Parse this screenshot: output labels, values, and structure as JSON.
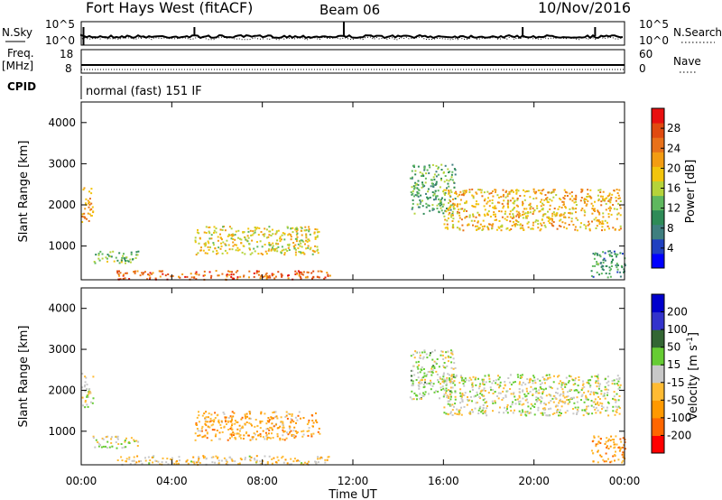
{
  "header": {
    "station": "Fort Hays West (fitACF)",
    "beam": "Beam 06",
    "date": "10/Nov/2016"
  },
  "status_panels": {
    "nsky": {
      "label": "N.Sky",
      "left_ticks": [
        "10^5",
        "10^0"
      ],
      "right_ticks": [
        "10^5",
        "10^0"
      ],
      "right_label": "N.Search"
    },
    "freq": {
      "label_line1": "Freq.",
      "label_line2": "[MHz]",
      "left_ticks": [
        "18",
        "8"
      ],
      "right_ticks": [
        "60",
        "0"
      ],
      "right_label": "Nave"
    },
    "cpid": {
      "label": "CPID",
      "text": "normal (fast) 151 IF"
    }
  },
  "x_axis": {
    "label": "Time UT",
    "ticks": [
      "00:00",
      "04:00",
      "08:00",
      "12:00",
      "16:00",
      "20:00",
      "00:00"
    ]
  },
  "chart_data": [
    {
      "type": "heatmap",
      "panel": "power",
      "ylabel": "Slant Range [km]",
      "yticks": [
        1000,
        2000,
        3000,
        4000
      ],
      "ylim": [
        180,
        4500
      ],
      "xlim": [
        0,
        24
      ],
      "colorbar": {
        "label": "Power [dB]",
        "ticks": [
          4,
          8,
          12,
          16,
          20,
          24,
          28
        ],
        "range": [
          0,
          32
        ]
      },
      "regions": [
        {
          "t": [
            0.0,
            0.5
          ],
          "r": [
            1600,
            2450
          ],
          "value": 22
        },
        {
          "t": [
            0.5,
            2.5
          ],
          "r": [
            600,
            900
          ],
          "value": 14
        },
        {
          "t": [
            1.5,
            11.0
          ],
          "r": [
            200,
            420
          ],
          "value": 26
        },
        {
          "t": [
            5.0,
            10.5
          ],
          "r": [
            800,
            1500
          ],
          "value": 18
        },
        {
          "t": [
            14.5,
            16.5
          ],
          "r": [
            1800,
            3000
          ],
          "value": 12
        },
        {
          "t": [
            16.0,
            23.8
          ],
          "r": [
            1400,
            2400
          ],
          "value": 20
        },
        {
          "t": [
            22.5,
            24.0
          ],
          "r": [
            250,
            900
          ],
          "value": 10
        }
      ]
    },
    {
      "type": "heatmap",
      "panel": "velocity",
      "ylabel": "Slant Range [km]",
      "yticks": [
        1000,
        2000,
        3000,
        4000
      ],
      "ylim": [
        180,
        4500
      ],
      "xlim": [
        0,
        24
      ],
      "colorbar": {
        "label": "Velocity [m s^-1]",
        "ticks": [
          200,
          100,
          50,
          15,
          -15,
          -50,
          -100,
          -200
        ],
        "range": [
          -250,
          250
        ]
      },
      "regions": [
        {
          "t": [
            0.0,
            0.5
          ],
          "r": [
            1600,
            2450
          ],
          "value": 0
        },
        {
          "t": [
            0.5,
            2.5
          ],
          "r": [
            600,
            900
          ],
          "value": 0
        },
        {
          "t": [
            1.5,
            11.0
          ],
          "r": [
            200,
            420
          ],
          "value": -40
        },
        {
          "t": [
            5.0,
            10.5
          ],
          "r": [
            800,
            1500
          ],
          "value": -80
        },
        {
          "t": [
            14.5,
            16.5
          ],
          "r": [
            1800,
            3000
          ],
          "value": 20
        },
        {
          "t": [
            16.0,
            23.8
          ],
          "r": [
            1400,
            2400
          ],
          "value": 0
        },
        {
          "t": [
            22.5,
            24.0
          ],
          "r": [
            250,
            900
          ],
          "value": -100
        }
      ]
    }
  ],
  "colors": {
    "power_scale": [
      "#0000ff",
      "#2040c0",
      "#3f7f7f",
      "#2e8b57",
      "#5fb85f",
      "#b5d33a",
      "#f2c40c",
      "#f39c12",
      "#e8711a",
      "#e04a10",
      "#e81010"
    ],
    "velocity_scale": [
      "#ff0000",
      "#ff6600",
      "#ff9900",
      "#ffbb33",
      "#c8c8c8",
      "#66cc33",
      "#336633",
      "#3333cc",
      "#0000cc"
    ],
    "ground_scatter": "#bebebe"
  }
}
